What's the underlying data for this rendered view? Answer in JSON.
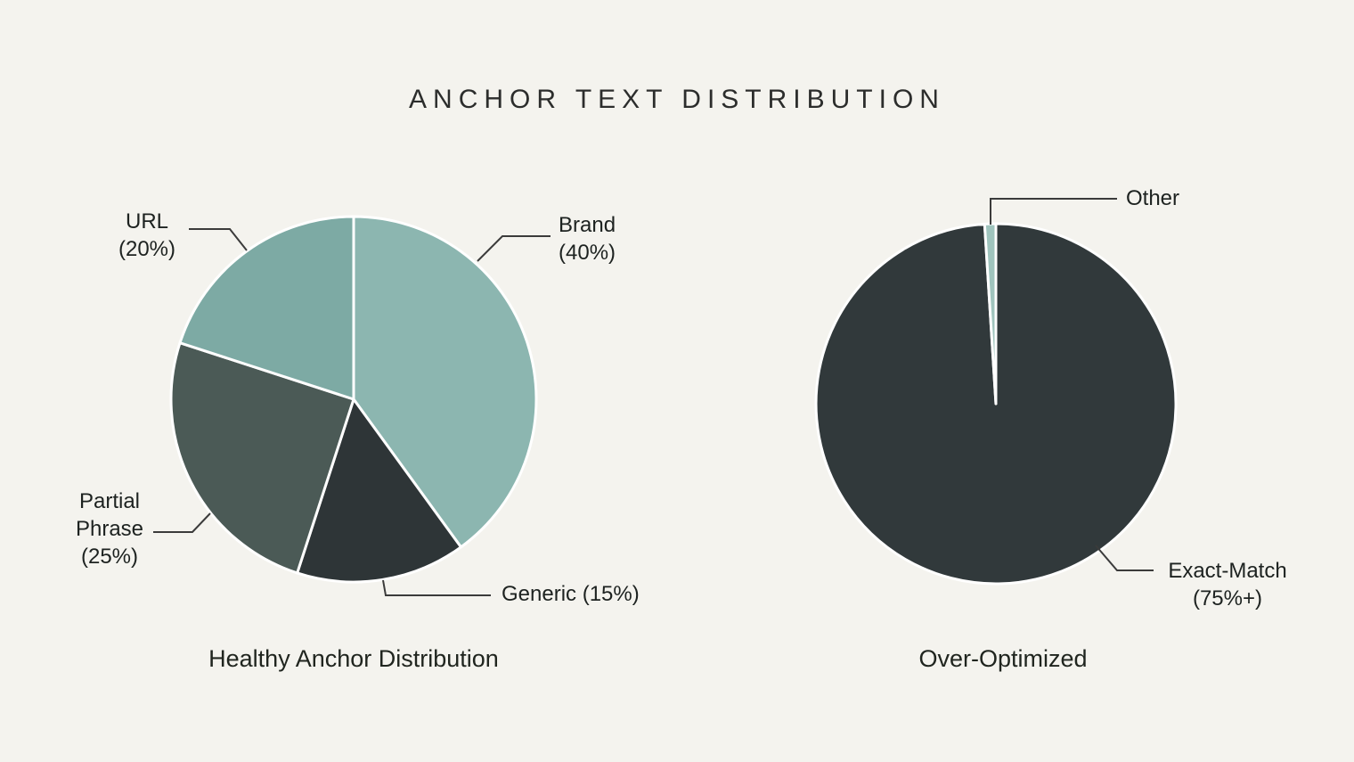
{
  "title": "ANCHOR TEXT DISTRIBUTION",
  "colors": {
    "background": "#f4f3ee",
    "ink": "#1d2220",
    "separator": "#ffffff",
    "leader_line": "#3b3b3b",
    "brand_teal_light": "#8cb6b0",
    "teal_medium": "#7daaa4",
    "slate_dark": "#4b5a56",
    "charcoal": "#2e3537",
    "charcoal_right": "#31393b",
    "sliver_teal": "#9fc4bd"
  },
  "chart_data": [
    {
      "type": "pie",
      "name": "healthy-anchor-distribution",
      "caption": "Healthy Anchor Distribution",
      "start_angle_deg": 0,
      "direction": "clockwise",
      "legend_position": "callout-labels",
      "slices": [
        {
          "label": "Brand",
          "value": 40,
          "display": "Brand (40%)",
          "color": "#8cb6b0"
        },
        {
          "label": "Generic",
          "value": 15,
          "display": "Generic (15%)",
          "color": "#2e3537"
        },
        {
          "label": "Partial Phrase",
          "value": 25,
          "display": "Partial Phrase (25%)",
          "color": "#4b5a56"
        },
        {
          "label": "URL",
          "value": 20,
          "display": "URL (20%)",
          "color": "#7daaa4"
        }
      ]
    },
    {
      "type": "pie",
      "name": "over-optimized",
      "caption": "Over-Optimized",
      "start_angle_deg": 0,
      "direction": "clockwise",
      "legend_position": "callout-labels",
      "slices": [
        {
          "label": "Exact-Match",
          "value": 99,
          "stated_pct": "75%+",
          "display": "Exact-Match (75%+)",
          "color": "#31393b"
        },
        {
          "label": "Other",
          "value": 1,
          "display": "Other",
          "color": "#9fc4bd"
        }
      ]
    }
  ],
  "labels": {
    "url_line1": "URL",
    "url_line2": "(20%)",
    "brand_line1": "Brand",
    "brand_line2": "(40%)",
    "partial_line1": "Partial",
    "partial_line2": "Phrase",
    "partial_line3": "(25%)",
    "generic": "Generic (15%)",
    "other": "Other",
    "exact_line1": "Exact-Match",
    "exact_line2": "(75%+)"
  }
}
